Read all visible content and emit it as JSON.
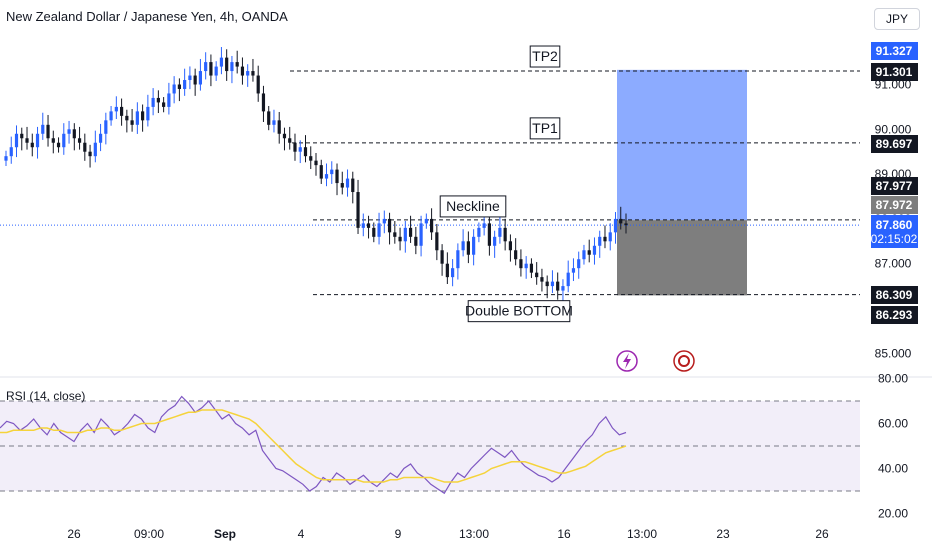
{
  "header": {
    "title": "New Zealand Dollar / Japanese Yen, 4h, OANDA",
    "currency": "JPY"
  },
  "chart_data": [
    {
      "type": "candlestick",
      "title": "New Zealand Dollar / Japanese Yen, 4h, OANDA",
      "ylim": [
        84.6,
        91.6
      ],
      "y_ticks": [
        "91.000",
        "90.000",
        "89.000",
        "88.000",
        "87.000",
        "85.000"
      ],
      "x_ticks": [
        "26",
        "09:00",
        "Sep",
        "4",
        "9",
        "13:00",
        "16",
        "13:00",
        "23",
        "26"
      ],
      "close_series": [
        89.4,
        89.6,
        89.9,
        89.8,
        89.7,
        89.6,
        89.9,
        90.1,
        89.8,
        89.7,
        89.6,
        89.9,
        90.0,
        89.8,
        89.7,
        89.5,
        89.4,
        89.7,
        89.9,
        90.2,
        90.4,
        90.5,
        90.3,
        90.2,
        90.1,
        90.4,
        90.2,
        90.5,
        90.7,
        90.6,
        90.5,
        90.8,
        91.0,
        90.9,
        91.1,
        91.2,
        91.0,
        91.3,
        91.5,
        91.2,
        91.4,
        91.6,
        91.3,
        91.5,
        91.4,
        91.2,
        91.3,
        91.2,
        90.8,
        90.4,
        90.1,
        90.2,
        89.9,
        89.8,
        89.7,
        89.5,
        89.6,
        89.4,
        89.3,
        89.2,
        88.9,
        89.0,
        89.1,
        88.8,
        88.7,
        88.9,
        88.6,
        87.8,
        87.9,
        87.8,
        87.6,
        87.9,
        88.0,
        87.7,
        87.6,
        87.5,
        87.8,
        87.6,
        87.4,
        87.9,
        88.0,
        87.7,
        87.3,
        87.0,
        86.7,
        86.9,
        87.3,
        87.5,
        87.2,
        87.6,
        87.8,
        87.9,
        87.4,
        87.6,
        87.8,
        87.5,
        87.3,
        87.1,
        86.9,
        87.0,
        86.8,
        86.7,
        86.6,
        86.5,
        86.6,
        86.4,
        86.5,
        86.8,
        86.9,
        87.1,
        87.3,
        87.2,
        87.4,
        87.6,
        87.5,
        87.7,
        88.0,
        87.9,
        87.86
      ],
      "current_price": "87.860",
      "countdown": "02:15:02",
      "price_labels": [
        {
          "value": "91.327",
          "kind": "blue"
        },
        {
          "value": "91.301",
          "kind": "black"
        },
        {
          "value": "89.697",
          "kind": "black"
        },
        {
          "value": "87.977",
          "kind": "black"
        },
        {
          "value": "87.972",
          "kind": "grey"
        },
        {
          "value": "86.309",
          "kind": "black"
        },
        {
          "value": "86.293",
          "kind": "black"
        }
      ],
      "levels": [
        {
          "name": "TP2",
          "value": 91.301
        },
        {
          "name": "TP1",
          "value": 89.697
        },
        {
          "name": "Neckline",
          "value": 87.977
        },
        {
          "name": "Double BOTTOM",
          "value": 86.309
        }
      ],
      "annotations": [
        "TP2",
        "TP1",
        "Neckline",
        "Double BOTTOM"
      ],
      "position": {
        "entry": 87.972,
        "target": 91.327,
        "stop": 86.293
      },
      "colors": {
        "up": "#2962ff",
        "down": "#131722",
        "target_zone": "#8cabff",
        "stop_zone": "#7e7e7e"
      }
    },
    {
      "type": "line",
      "title": "RSI (14, close)",
      "ylim": [
        20,
        80
      ],
      "y_ticks": [
        "80.00",
        "60.00",
        "40.00",
        "20.00"
      ],
      "bands": [
        70,
        30
      ],
      "series": [
        {
          "name": "RSI",
          "color": "#7e57c2",
          "values": [
            58,
            61,
            60,
            57,
            59,
            62,
            58,
            55,
            60,
            56,
            54,
            52,
            57,
            60,
            56,
            62,
            59,
            55,
            57,
            60,
            64,
            62,
            58,
            56,
            63,
            66,
            68,
            72,
            69,
            65,
            67,
            70,
            66,
            62,
            64,
            60,
            58,
            55,
            57,
            48,
            44,
            40,
            39,
            37,
            35,
            33,
            30,
            32,
            36,
            34,
            38,
            36,
            33,
            35,
            37,
            34,
            32,
            35,
            38,
            36,
            40,
            42,
            38,
            36,
            33,
            31,
            29,
            34,
            38,
            36,
            40,
            43,
            46,
            49,
            47,
            45,
            48,
            44,
            41,
            39,
            37,
            36,
            34,
            36,
            40,
            44,
            48,
            52,
            55,
            60,
            63,
            58,
            55,
            56
          ]
        },
        {
          "name": "RSI-based MA",
          "color": "#f5d33b",
          "values": [
            56,
            56,
            57,
            57,
            57,
            57,
            58,
            58,
            57,
            57,
            56,
            56,
            56,
            57,
            57,
            58,
            58,
            57,
            57,
            58,
            59,
            60,
            60,
            60,
            61,
            62,
            63,
            64,
            65,
            65,
            66,
            66,
            66,
            66,
            65,
            64,
            63,
            62,
            60,
            57,
            54,
            51,
            48,
            45,
            42,
            40,
            38,
            36,
            35,
            35,
            35,
            35,
            35,
            35,
            34,
            34,
            34,
            34,
            35,
            35,
            36,
            36,
            36,
            36,
            36,
            35,
            34,
            34,
            34,
            35,
            36,
            37,
            38,
            40,
            41,
            42,
            43,
            43,
            43,
            42,
            41,
            40,
            39,
            38,
            38,
            39,
            40,
            41,
            43,
            45,
            47,
            48,
            49,
            50
          ]
        }
      ]
    }
  ]
}
